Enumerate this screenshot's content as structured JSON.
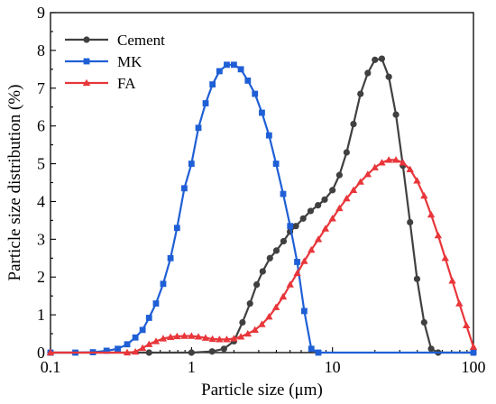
{
  "chart_data": {
    "type": "line",
    "xlabel": "Particle size (μm)",
    "ylabel": "Particle size distribution (%)",
    "xscale": "log",
    "xlim": [
      0.1,
      100
    ],
    "ylim": [
      0,
      9
    ],
    "xticks": [
      {
        "value": 0.1,
        "label": "0.1"
      },
      {
        "value": 1,
        "label": "1"
      },
      {
        "value": 10,
        "label": "10"
      },
      {
        "value": 100,
        "label": "100"
      }
    ],
    "yticks": [
      0,
      1,
      2,
      3,
      4,
      5,
      6,
      7,
      8,
      9
    ],
    "legend_position": "top-left",
    "series": [
      {
        "name": "Cement",
        "color": "#404040",
        "marker": "circle",
        "points": [
          [
            0.1,
            0
          ],
          [
            0.5,
            0
          ],
          [
            1.0,
            0
          ],
          [
            1.4,
            0.03
          ],
          [
            1.7,
            0.1
          ],
          [
            2.0,
            0.3
          ],
          [
            2.3,
            0.8
          ],
          [
            2.6,
            1.3
          ],
          [
            2.9,
            1.8
          ],
          [
            3.2,
            2.15
          ],
          [
            3.6,
            2.5
          ],
          [
            4.0,
            2.7
          ],
          [
            4.5,
            2.95
          ],
          [
            5.0,
            3.2
          ],
          [
            5.5,
            3.35
          ],
          [
            6.2,
            3.55
          ],
          [
            7.0,
            3.75
          ],
          [
            7.9,
            3.9
          ],
          [
            8.8,
            4.05
          ],
          [
            10.0,
            4.3
          ],
          [
            11.2,
            4.7
          ],
          [
            12.6,
            5.3
          ],
          [
            14.1,
            6.05
          ],
          [
            15.8,
            6.85
          ],
          [
            17.8,
            7.4
          ],
          [
            20.0,
            7.75
          ],
          [
            22.4,
            7.78
          ],
          [
            25.1,
            7.3
          ],
          [
            28.2,
            6.3
          ],
          [
            31.6,
            4.95
          ],
          [
            35.5,
            3.45
          ],
          [
            39.8,
            1.95
          ],
          [
            44.7,
            0.8
          ],
          [
            50.1,
            0.1
          ],
          [
            56.2,
            0
          ],
          [
            100,
            0
          ]
        ]
      },
      {
        "name": "MK",
        "color": "#1f5fd6",
        "marker": "square",
        "points": [
          [
            0.1,
            0
          ],
          [
            0.15,
            0
          ],
          [
            0.2,
            0.01
          ],
          [
            0.25,
            0.05
          ],
          [
            0.3,
            0.1
          ],
          [
            0.35,
            0.22
          ],
          [
            0.4,
            0.4
          ],
          [
            0.45,
            0.6
          ],
          [
            0.5,
            0.92
          ],
          [
            0.56,
            1.3
          ],
          [
            0.63,
            1.82
          ],
          [
            0.71,
            2.5
          ],
          [
            0.79,
            3.3
          ],
          [
            0.89,
            4.35
          ],
          [
            1.0,
            5.0
          ],
          [
            1.12,
            5.95
          ],
          [
            1.26,
            6.6
          ],
          [
            1.41,
            7.1
          ],
          [
            1.58,
            7.45
          ],
          [
            1.78,
            7.62
          ],
          [
            2.0,
            7.62
          ],
          [
            2.24,
            7.5
          ],
          [
            2.51,
            7.2
          ],
          [
            2.82,
            6.85
          ],
          [
            3.16,
            6.35
          ],
          [
            3.55,
            5.75
          ],
          [
            3.98,
            5.0
          ],
          [
            4.47,
            4.2
          ],
          [
            5.01,
            3.35
          ],
          [
            5.62,
            2.4
          ],
          [
            6.31,
            1.1
          ],
          [
            7.08,
            0.1
          ],
          [
            7.94,
            0
          ],
          [
            100,
            0
          ]
        ]
      },
      {
        "name": "FA",
        "color": "#e8363a",
        "marker": "triangle",
        "points": [
          [
            0.1,
            0
          ],
          [
            0.35,
            0
          ],
          [
            0.4,
            0.02
          ],
          [
            0.45,
            0.12
          ],
          [
            0.5,
            0.22
          ],
          [
            0.56,
            0.3
          ],
          [
            0.63,
            0.37
          ],
          [
            0.71,
            0.41
          ],
          [
            0.79,
            0.43
          ],
          [
            0.89,
            0.44
          ],
          [
            1.0,
            0.44
          ],
          [
            1.12,
            0.42
          ],
          [
            1.26,
            0.39
          ],
          [
            1.41,
            0.36
          ],
          [
            1.58,
            0.35
          ],
          [
            1.78,
            0.35
          ],
          [
            2.0,
            0.37
          ],
          [
            2.24,
            0.42
          ],
          [
            2.51,
            0.5
          ],
          [
            2.82,
            0.6
          ],
          [
            3.16,
            0.75
          ],
          [
            3.55,
            0.95
          ],
          [
            3.98,
            1.2
          ],
          [
            4.47,
            1.48
          ],
          [
            5.01,
            1.8
          ],
          [
            5.62,
            2.1
          ],
          [
            6.31,
            2.42
          ],
          [
            7.08,
            2.72
          ],
          [
            7.94,
            3.0
          ],
          [
            8.91,
            3.28
          ],
          [
            10.0,
            3.55
          ],
          [
            11.2,
            3.82
          ],
          [
            12.6,
            4.08
          ],
          [
            14.1,
            4.3
          ],
          [
            15.8,
            4.52
          ],
          [
            17.8,
            4.72
          ],
          [
            20.0,
            4.9
          ],
          [
            22.4,
            5.03
          ],
          [
            25.1,
            5.1
          ],
          [
            28.2,
            5.1
          ],
          [
            31.6,
            5.03
          ],
          [
            35.5,
            4.85
          ],
          [
            39.8,
            4.55
          ],
          [
            44.7,
            4.15
          ],
          [
            50.1,
            3.65
          ],
          [
            56.2,
            3.1
          ],
          [
            63.1,
            2.5
          ],
          [
            70.8,
            1.9
          ],
          [
            79.4,
            1.3
          ],
          [
            89.1,
            0.72
          ],
          [
            100,
            0.15
          ]
        ]
      }
    ]
  }
}
